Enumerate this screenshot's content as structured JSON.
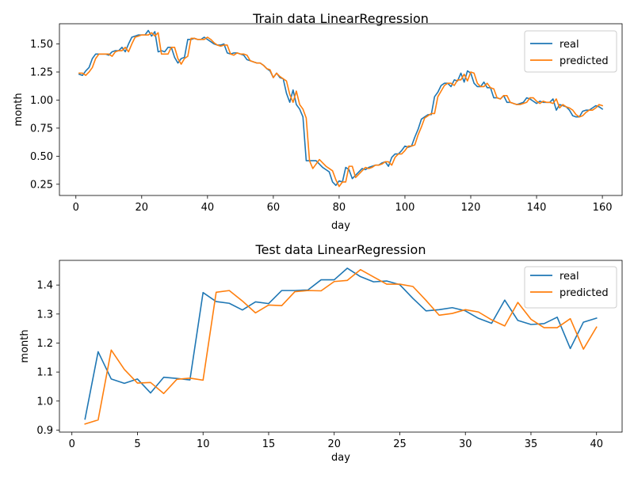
{
  "colors": {
    "real": "#1f77b4",
    "predicted": "#ff7f0e",
    "axis": "#000000",
    "legend_border": "#cccccc"
  },
  "chart_data": [
    {
      "type": "line",
      "title": "Train data LinearRegression",
      "xlabel": "day",
      "ylabel": "month",
      "xlim": [
        -5,
        166
      ],
      "ylim": [
        0.15,
        1.68
      ],
      "xticks": [
        0,
        20,
        40,
        60,
        80,
        100,
        120,
        140,
        160
      ],
      "xtick_labels": [
        "0",
        "20",
        "40",
        "60",
        "80",
        "100",
        "120",
        "140",
        "160"
      ],
      "yticks": [
        0.25,
        0.5,
        0.75,
        1.0,
        1.25,
        1.5
      ],
      "ytick_labels": [
        "0.25",
        "0.50",
        "0.75",
        "1.00",
        "1.25",
        "1.50"
      ],
      "legend_position": "upper right",
      "grid": false,
      "series": [
        {
          "name": "real",
          "x": [
            1,
            2,
            3,
            4,
            5,
            6,
            7,
            8,
            9,
            10,
            11,
            12,
            13,
            14,
            15,
            16,
            17,
            18,
            19,
            20,
            21,
            22,
            23,
            24,
            25,
            26,
            27,
            28,
            29,
            30,
            31,
            32,
            33,
            34,
            35,
            36,
            37,
            38,
            39,
            40,
            41,
            42,
            43,
            44,
            45,
            46,
            47,
            48,
            49,
            50,
            51,
            52,
            53,
            54,
            55,
            56,
            57,
            58,
            59,
            60,
            61,
            62,
            63,
            64,
            65,
            66,
            67,
            68,
            69,
            70,
            71,
            72,
            73,
            74,
            75,
            76,
            77,
            78,
            79,
            80,
            81,
            82,
            83,
            84,
            85,
            86,
            87,
            88,
            89,
            90,
            91,
            92,
            93,
            94,
            95,
            96,
            97,
            98,
            99,
            100,
            101,
            102,
            103,
            104,
            105,
            106,
            107,
            108,
            109,
            110,
            111,
            112,
            113,
            114,
            115,
            116,
            117,
            118,
            119,
            120,
            121,
            122,
            123,
            124,
            125,
            126,
            127,
            128,
            129,
            130,
            131,
            132,
            133,
            134,
            135,
            136,
            137,
            138,
            139,
            140,
            141,
            142,
            143,
            144,
            145,
            146,
            147,
            148,
            149,
            150,
            151,
            152,
            153,
            154,
            155,
            156,
            157,
            158,
            159,
            160
          ],
          "y": [
            1.23,
            1.22,
            1.26,
            1.29,
            1.37,
            1.41,
            1.41,
            1.41,
            1.41,
            1.4,
            1.43,
            1.44,
            1.44,
            1.47,
            1.43,
            1.5,
            1.56,
            1.57,
            1.58,
            1.58,
            1.58,
            1.62,
            1.57,
            1.61,
            1.43,
            1.44,
            1.43,
            1.47,
            1.47,
            1.38,
            1.33,
            1.37,
            1.38,
            1.54,
            1.54,
            1.55,
            1.54,
            1.54,
            1.56,
            1.54,
            1.52,
            1.5,
            1.49,
            1.49,
            1.5,
            1.42,
            1.41,
            1.42,
            1.42,
            1.41,
            1.4,
            1.36,
            1.35,
            1.34,
            1.33,
            1.33,
            1.31,
            1.28,
            1.26,
            1.2,
            1.24,
            1.2,
            1.19,
            1.06,
            0.98,
            1.09,
            0.96,
            0.92,
            0.85,
            0.46,
            0.46,
            0.46,
            0.46,
            0.43,
            0.4,
            0.38,
            0.36,
            0.27,
            0.24,
            0.28,
            0.27,
            0.4,
            0.38,
            0.3,
            0.33,
            0.36,
            0.39,
            0.38,
            0.4,
            0.41,
            0.42,
            0.42,
            0.44,
            0.45,
            0.41,
            0.49,
            0.52,
            0.52,
            0.55,
            0.59,
            0.58,
            0.59,
            0.67,
            0.74,
            0.83,
            0.85,
            0.87,
            0.87,
            1.03,
            1.07,
            1.13,
            1.15,
            1.15,
            1.12,
            1.18,
            1.17,
            1.24,
            1.16,
            1.26,
            1.24,
            1.15,
            1.12,
            1.12,
            1.16,
            1.11,
            1.11,
            1.02,
            1.02,
            1.01,
            1.04,
            0.98,
            0.98,
            0.97,
            0.96,
            0.97,
            0.98,
            1.02,
            1.01,
            0.99,
            0.97,
            0.99,
            0.98,
            0.98,
            0.98,
            1.01,
            0.91,
            0.96,
            0.95,
            0.94,
            0.91,
            0.86,
            0.85,
            0.85,
            0.9,
            0.91,
            0.91,
            0.93,
            0.95,
            0.94,
            0.92
          ]
        },
        {
          "name": "predicted",
          "x": [
            1,
            2,
            3,
            4,
            5,
            6,
            7,
            8,
            9,
            10,
            11,
            12,
            13,
            14,
            15,
            16,
            17,
            18,
            19,
            20,
            21,
            22,
            23,
            24,
            25,
            26,
            27,
            28,
            29,
            30,
            31,
            32,
            33,
            34,
            35,
            36,
            37,
            38,
            39,
            40,
            41,
            42,
            43,
            44,
            45,
            46,
            47,
            48,
            49,
            50,
            51,
            52,
            53,
            54,
            55,
            56,
            57,
            58,
            59,
            60,
            61,
            62,
            63,
            64,
            65,
            66,
            67,
            68,
            69,
            70,
            71,
            72,
            73,
            74,
            75,
            76,
            77,
            78,
            79,
            80,
            81,
            82,
            83,
            84,
            85,
            86,
            87,
            88,
            89,
            90,
            91,
            92,
            93,
            94,
            95,
            96,
            97,
            98,
            99,
            100,
            101,
            102,
            103,
            104,
            105,
            106,
            107,
            108,
            109,
            110,
            111,
            112,
            113,
            114,
            115,
            116,
            117,
            118,
            119,
            120,
            121,
            122,
            123,
            124,
            125,
            126,
            127,
            128,
            129,
            130,
            131,
            132,
            133,
            134,
            135,
            136,
            137,
            138,
            139,
            140,
            141,
            142,
            143,
            144,
            145,
            146,
            147,
            148,
            149,
            150,
            151,
            152,
            153,
            154,
            155,
            156,
            157,
            158,
            159,
            160
          ],
          "y": [
            1.24,
            1.24,
            1.22,
            1.25,
            1.29,
            1.37,
            1.41,
            1.41,
            1.41,
            1.41,
            1.39,
            1.43,
            1.44,
            1.44,
            1.47,
            1.43,
            1.5,
            1.56,
            1.57,
            1.58,
            1.58,
            1.58,
            1.6,
            1.57,
            1.6,
            1.41,
            1.41,
            1.41,
            1.47,
            1.47,
            1.37,
            1.32,
            1.37,
            1.39,
            1.55,
            1.55,
            1.54,
            1.54,
            1.54,
            1.56,
            1.54,
            1.51,
            1.49,
            1.48,
            1.49,
            1.49,
            1.41,
            1.4,
            1.42,
            1.41,
            1.41,
            1.4,
            1.35,
            1.34,
            1.33,
            1.33,
            1.31,
            1.28,
            1.27,
            1.2,
            1.24,
            1.21,
            1.19,
            1.17,
            1.05,
            0.98,
            1.08,
            0.96,
            0.92,
            0.84,
            0.46,
            0.39,
            0.43,
            0.47,
            0.44,
            0.41,
            0.39,
            0.37,
            0.29,
            0.23,
            0.27,
            0.27,
            0.41,
            0.41,
            0.31,
            0.34,
            0.37,
            0.4,
            0.39,
            0.4,
            0.42,
            0.42,
            0.43,
            0.45,
            0.45,
            0.42,
            0.49,
            0.52,
            0.52,
            0.55,
            0.59,
            0.59,
            0.6,
            0.69,
            0.76,
            0.84,
            0.86,
            0.88,
            0.88,
            1.03,
            1.08,
            1.13,
            1.15,
            1.15,
            1.13,
            1.18,
            1.18,
            1.23,
            1.17,
            1.25,
            1.24,
            1.15,
            1.12,
            1.12,
            1.15,
            1.11,
            1.1,
            1.02,
            1.01,
            1.04,
            1.04,
            0.98,
            0.97,
            0.96,
            0.96,
            0.97,
            0.98,
            1.02,
            1.02,
            0.99,
            0.97,
            0.99,
            0.98,
            0.98,
            0.97,
            1.01,
            0.93,
            0.96,
            0.94,
            0.93,
            0.91,
            0.87,
            0.85,
            0.86,
            0.89,
            0.91,
            0.91,
            0.93,
            0.96,
            0.95
          ]
        }
      ]
    },
    {
      "type": "line",
      "title": "Test data LinearRegression",
      "xlabel": "day",
      "ylabel": "month",
      "xlim": [
        -0.95,
        41.95
      ],
      "ylim": [
        0.893,
        1.485
      ],
      "xticks": [
        0,
        5,
        10,
        15,
        20,
        25,
        30,
        35,
        40
      ],
      "xtick_labels": [
        "0",
        "5",
        "10",
        "15",
        "20",
        "25",
        "30",
        "35",
        "40"
      ],
      "yticks": [
        0.9,
        1.0,
        1.1,
        1.2,
        1.3,
        1.4
      ],
      "ytick_labels": [
        "0.9",
        "1.0",
        "1.1",
        "1.2",
        "1.3",
        "1.4"
      ],
      "legend_position": "upper right",
      "grid": false,
      "series": [
        {
          "name": "real",
          "x": [
            1,
            2,
            3,
            4,
            5,
            6,
            7,
            8,
            9,
            10,
            11,
            12,
            13,
            14,
            15,
            16,
            17,
            18,
            19,
            20,
            21,
            22,
            23,
            24,
            25,
            26,
            27,
            28,
            29,
            30,
            31,
            32,
            33,
            34,
            35,
            36,
            37,
            38,
            39,
            40
          ],
          "y": [
            0.938,
            1.17,
            1.076,
            1.061,
            1.076,
            1.028,
            1.082,
            1.078,
            1.073,
            1.374,
            1.343,
            1.337,
            1.314,
            1.342,
            1.336,
            1.381,
            1.381,
            1.383,
            1.418,
            1.418,
            1.458,
            1.429,
            1.411,
            1.414,
            1.401,
            1.354,
            1.311,
            1.315,
            1.322,
            1.311,
            1.285,
            1.268,
            1.348,
            1.278,
            1.264,
            1.267,
            1.289,
            1.181,
            1.272,
            1.286
          ]
        },
        {
          "name": "predicted",
          "x": [
            1,
            2,
            3,
            4,
            5,
            6,
            7,
            8,
            9,
            10,
            11,
            12,
            13,
            14,
            15,
            16,
            17,
            18,
            19,
            20,
            21,
            22,
            23,
            24,
            25,
            26,
            27,
            28,
            29,
            30,
            31,
            32,
            33,
            34,
            35,
            36,
            37,
            38,
            39,
            40
          ],
          "y": [
            0.921,
            0.935,
            1.176,
            1.109,
            1.062,
            1.064,
            1.026,
            1.075,
            1.079,
            1.072,
            1.375,
            1.381,
            1.345,
            1.304,
            1.331,
            1.329,
            1.377,
            1.381,
            1.38,
            1.412,
            1.416,
            1.453,
            1.428,
            1.403,
            1.403,
            1.395,
            1.347,
            1.296,
            1.302,
            1.315,
            1.307,
            1.28,
            1.259,
            1.34,
            1.282,
            1.253,
            1.253,
            1.284,
            1.179,
            1.255
          ]
        }
      ]
    }
  ]
}
